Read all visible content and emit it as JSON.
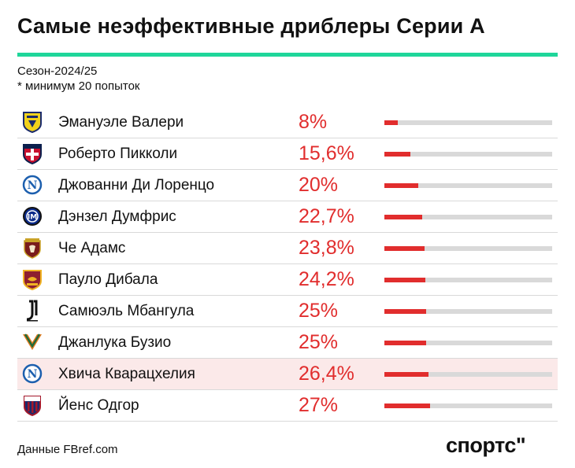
{
  "title": "Самые неэффективные дриблеры Серии А",
  "subtitle_season": "Сезон-2024/25",
  "subtitle_note": "* минимум 20 попыток",
  "footer": "Данные FBref.com",
  "brand": "спортс\"",
  "colors": {
    "accent_line": "#1fd69a",
    "bar_fill": "#e12d2d",
    "bar_track": "#d9d9d9",
    "highlight_row": "#fbe9e9"
  },
  "chart_data": {
    "type": "bar",
    "orientation": "horizontal",
    "xlim": [
      0,
      100
    ],
    "categories": [
      "Эмануэле Валери",
      "Роберто Пикколи",
      "Джованни Ди Лоренцо",
      "Дэнзел Думфрис",
      "Че Адамс",
      "Пауло Дибала",
      "Самюэль Мбангула",
      "Джанлука Бузио",
      "Хвича Кварацхелия",
      "Йенс Одгор"
    ],
    "values": [
      8,
      15.6,
      20,
      22.7,
      23.8,
      24.2,
      25,
      25,
      26.4,
      27
    ],
    "value_labels": [
      "8%",
      "15,6%",
      "20%",
      "22,7%",
      "23,8%",
      "24,2%",
      "25%",
      "25%",
      "26,4%",
      "27%"
    ],
    "team_icons": [
      "parma-crest-icon",
      "cagliari-crest-icon",
      "napoli-crest-icon",
      "inter-crest-icon",
      "torino-crest-icon",
      "roma-crest-icon",
      "juventus-crest-icon",
      "venezia-crest-icon",
      "napoli-crest-icon",
      "bologna-crest-icon"
    ],
    "highlighted": [
      false,
      false,
      false,
      false,
      false,
      false,
      false,
      false,
      true,
      false
    ]
  }
}
